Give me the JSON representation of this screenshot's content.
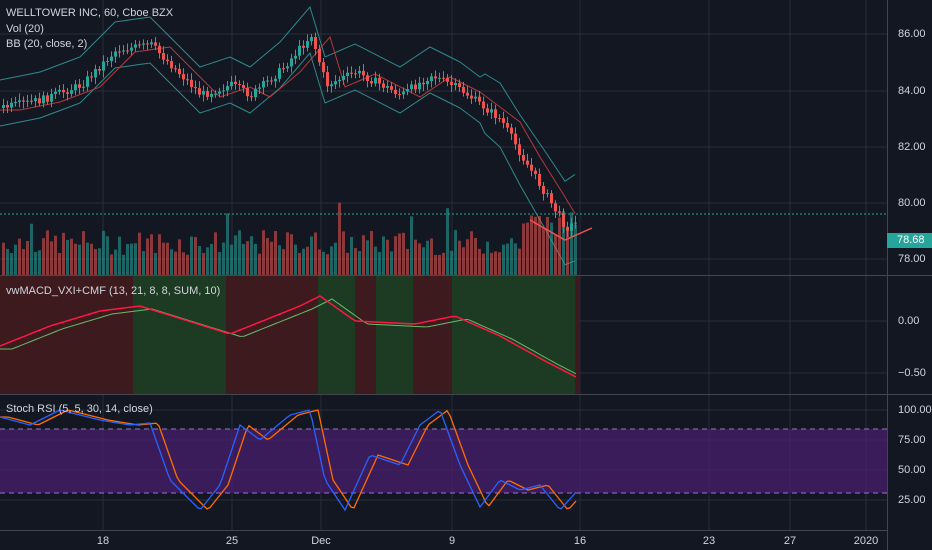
{
  "chart": {
    "title": "WELLTOWER INC, 60, Cboe BZX",
    "vol_label": "Vol (20)",
    "bb_label": "BB (20, close, 2)",
    "last_price": "78.68",
    "price_ticks": [
      "86.00",
      "84.00",
      "82.00",
      "80.00",
      "78.00"
    ],
    "x_labels": [
      "18",
      "25",
      "Dec",
      "9",
      "16",
      "23",
      "27",
      "2020"
    ]
  },
  "macd": {
    "label": "vwMACD_VXI+CMF (13, 21, 8, 8, SUM, 10)",
    "ticks": [
      "0.00",
      "−0.50"
    ]
  },
  "stoch": {
    "label": "Stoch RSI (5, 5, 30, 14, close)",
    "ticks": [
      "100.00",
      "75.00",
      "50.00",
      "25.00"
    ]
  },
  "colors": {
    "background": "#131722",
    "up": "#26a69a",
    "down": "#ef5350",
    "bb_band": "#2d8a8a",
    "bb_basis": "#b33a3a",
    "macd_green": "#1d3b22",
    "macd_red": "#3d1a1e",
    "stoch_band": "#4a1f6e",
    "stoch_k": "#2962ff",
    "stoch_d": "#ff6d00"
  }
}
